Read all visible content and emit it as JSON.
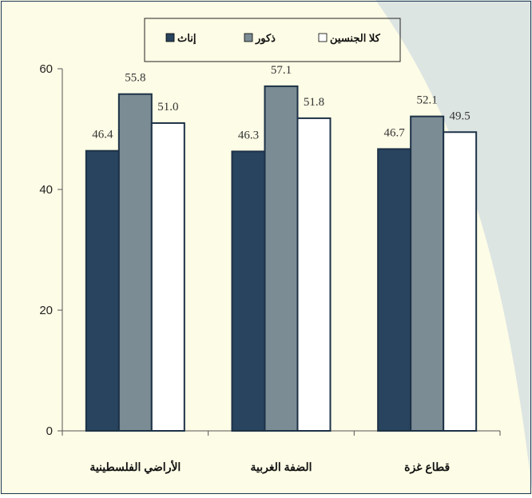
{
  "chart_data": {
    "type": "bar",
    "categories": [
      "الأراضي الفلسطينية",
      "الضفة الغربية",
      "قطاع غزة"
    ],
    "series": [
      {
        "name": "إناث",
        "values": [
          46.4,
          46.3,
          46.7
        ],
        "color": "#28445e"
      },
      {
        "name": "ذكور",
        "values": [
          55.8,
          57.1,
          52.1
        ],
        "color": "#7c8c94"
      },
      {
        "name": "كلا الجنسين",
        "values": [
          51.0,
          51.8,
          49.5
        ],
        "color": "#ffffff"
      }
    ],
    "value_labels": [
      [
        "46.4",
        "46.3",
        "46.7"
      ],
      [
        "55.8",
        "57.1",
        "52.1"
      ],
      [
        "51.0",
        "51.8",
        "49.5"
      ]
    ],
    "y_ticks": [
      "0",
      "20",
      "40",
      "60"
    ],
    "ylim": [
      0,
      60
    ],
    "grid": false,
    "legend_position": "top-center",
    "title": "",
    "xlabel": "",
    "ylabel": ""
  },
  "colors": {
    "background": "#fdfce6",
    "corner_decoration": "#dde5e3",
    "border": "#1f3a55"
  }
}
